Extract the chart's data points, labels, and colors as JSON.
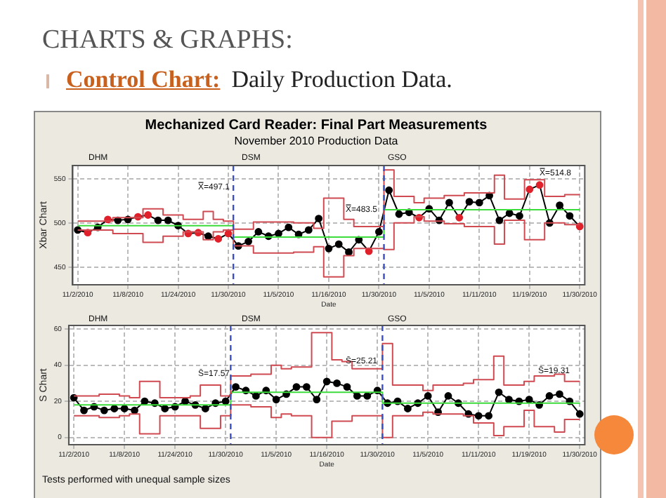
{
  "chart_data": [
    {
      "type": "line",
      "title": "Mechanized Card Reader:  Final Part Measurements",
      "subtitle": "November 2010 Production Data",
      "xlabel": "Date",
      "ylabel": "Xbar Chart",
      "annotations": [
        "CHARTS & GRAPHS:",
        "Control Chart:",
        "Daily Production Data.",
        "DHM",
        "DSM",
        "GSO",
        "X̿=497.1",
        "X̿=483.5",
        "X̿=514.8"
      ],
      "categories": [
        "11/2/2010",
        null,
        null,
        null,
        null,
        "11/8/2010",
        null,
        null,
        null,
        null,
        "11/24/2010",
        null,
        null,
        null,
        null,
        "11/30/2010",
        null,
        null,
        null,
        null,
        "11/5/2010",
        null,
        null,
        null,
        null,
        "11/16/2010",
        null,
        null,
        null,
        null,
        "11/30/2010",
        null,
        null,
        null,
        null,
        "11/5/2010",
        null,
        null,
        null,
        null,
        "11/11/2010",
        null,
        null,
        null,
        null,
        "11/19/2010",
        null,
        null,
        null,
        null,
        "11/30/2010"
      ],
      "series": [
        {
          "type": "step",
          "color": "#d04a52",
          "values": [
            502,
            502,
            502,
            502,
            506,
            506,
            506,
            516,
            516,
            509,
            509,
            504,
            504,
            513,
            504,
            502,
            493,
            493,
            501,
            501,
            501,
            501,
            500,
            500,
            494,
            528,
            528,
            504,
            496,
            496,
            496,
            560,
            530,
            530,
            523,
            528,
            528,
            531,
            531,
            534,
            534,
            534,
            554,
            527,
            527,
            549,
            549,
            530,
            530,
            532,
            532
          ]
        },
        {
          "type": "step",
          "color": "#d04a52",
          "values": [
            492,
            492,
            492,
            492,
            488,
            488,
            488,
            478,
            478,
            485,
            485,
            490,
            490,
            481,
            490,
            492,
            474,
            474,
            466,
            466,
            466,
            466,
            467,
            467,
            473,
            439,
            439,
            463,
            471,
            471,
            471,
            470,
            500,
            500,
            507,
            502,
            502,
            499,
            499,
            496,
            496,
            496,
            476,
            503,
            503,
            481,
            481,
            500,
            500,
            498,
            498
          ]
        },
        {
          "type": "step",
          "color": "#3ddc3d",
          "values": [
            497,
            497,
            497,
            497,
            497,
            497,
            497,
            497,
            497,
            497,
            497,
            497,
            497,
            497,
            497,
            497,
            484,
            484,
            484,
            484,
            484,
            484,
            484,
            484,
            484,
            484,
            484,
            484,
            484,
            484,
            484,
            515,
            515,
            515,
            515,
            515,
            515,
            515,
            515,
            515,
            515,
            515,
            515,
            515,
            515,
            515,
            515,
            515,
            515,
            515,
            515
          ]
        },
        {
          "type": "line",
          "color": "#000000",
          "marker": "circle",
          "values": [
            492,
            489,
            495,
            504,
            503,
            504,
            507,
            509,
            503,
            503,
            497,
            488,
            489,
            485,
            482,
            488,
            474,
            479,
            490,
            485,
            488,
            495,
            487,
            492,
            505,
            471,
            476,
            467,
            481,
            468,
            490,
            537,
            510,
            512,
            506,
            516,
            503,
            523,
            506,
            524,
            523,
            531,
            503,
            511,
            508,
            538,
            543,
            500,
            520,
            508,
            496
          ],
          "colors": [
            "#000000",
            "#e0202a",
            "#000000",
            "#e0202a",
            "#000000",
            "#000000",
            "#e0202a",
            "#e0202a",
            "#000000",
            "#000000",
            "#000000",
            "#e0202a",
            "#e0202a",
            "#000000",
            "#e0202a",
            "#e0202a",
            "#000000",
            "#000000",
            "#000000",
            "#000000",
            "#000000",
            "#000000",
            "#000000",
            "#000000",
            "#000000",
            "#000000",
            "#000000",
            "#000000",
            "#000000",
            "#e0202a",
            "#000000",
            "#000000",
            "#000000",
            "#000000",
            "#e0202a",
            "#000000",
            "#000000",
            "#000000",
            "#e0202a",
            "#000000",
            "#000000",
            "#000000",
            "#000000",
            "#000000",
            "#000000",
            "#e0202a",
            "#e0202a",
            "#000000",
            "#000000",
            "#000000",
            "#e0202a"
          ]
        }
      ],
      "ylim": [
        430,
        565
      ],
      "yticks": [
        450,
        500,
        550
      ],
      "grid": true,
      "legend": false
    },
    {
      "type": "line",
      "xlabel": "Date",
      "ylabel": "S Chart",
      "annotations": [
        "Tests performed with unequal sample sizes",
        "DHM",
        "DSM",
        "GSO",
        "S̄=17.57",
        "S̄=25.21",
        "S̄=19.31"
      ],
      "categories": [
        "11/2/2010",
        null,
        null,
        null,
        null,
        "11/8/2010",
        null,
        null,
        null,
        null,
        "11/24/2010",
        null,
        null,
        null,
        null,
        "11/30/2010",
        null,
        null,
        null,
        null,
        "11/5/2010",
        null,
        null,
        null,
        null,
        "11/16/2010",
        null,
        null,
        null,
        null,
        "11/30/2010",
        null,
        null,
        null,
        null,
        "11/5/2010",
        null,
        null,
        null,
        null,
        "11/11/2010",
        null,
        null,
        null,
        null,
        "11/19/2010",
        null,
        null,
        null,
        null,
        "11/30/2010"
      ],
      "series": [
        {
          "type": "step",
          "color": "#d04a52",
          "values": [
            23,
            23,
            23,
            24,
            24,
            23,
            22,
            31,
            31,
            22,
            22,
            22,
            23,
            29,
            29,
            23,
            34,
            34,
            35,
            35,
            40,
            38,
            39,
            39,
            58,
            58,
            43,
            42,
            38,
            38,
            38,
            52,
            29,
            29,
            29,
            26,
            29,
            29,
            29,
            30,
            32,
            32,
            45,
            29,
            29,
            31,
            34,
            34,
            35,
            31,
            31
          ]
        },
        {
          "type": "step",
          "color": "#d04a52",
          "values": [
            12,
            12,
            12,
            11,
            11,
            12,
            13,
            2,
            2,
            12,
            12,
            12,
            12,
            5,
            5,
            12,
            18,
            18,
            17,
            17,
            11,
            13,
            12,
            12,
            0,
            0,
            9,
            9,
            12,
            12,
            12,
            0,
            12,
            12,
            12,
            14,
            13,
            13,
            13,
            12,
            8,
            8,
            1,
            6,
            6,
            15,
            6,
            6,
            3,
            10,
            10
          ]
        },
        {
          "type": "step",
          "color": "#3ddc3d",
          "values": [
            18,
            18,
            18,
            18,
            18,
            18,
            18,
            18,
            18,
            18,
            18,
            18,
            18,
            18,
            18,
            18,
            25,
            25,
            25,
            25,
            25,
            25,
            25,
            25,
            25,
            25,
            25,
            25,
            25,
            25,
            25,
            19,
            19,
            19,
            19,
            19,
            19,
            19,
            19,
            19,
            19,
            19,
            19,
            19,
            19,
            19,
            19,
            19,
            19,
            19,
            19
          ]
        },
        {
          "type": "line",
          "color": "#000000",
          "marker": "circle",
          "values": [
            22,
            15,
            17,
            15,
            16,
            16,
            15,
            20,
            19,
            16,
            17,
            20,
            18,
            16,
            19,
            20,
            28,
            26,
            23,
            26,
            21,
            24,
            28,
            28,
            21,
            31,
            30,
            28,
            23,
            23,
            26,
            19,
            20,
            16,
            19,
            23,
            14,
            23,
            19,
            13,
            12,
            12,
            25,
            21,
            20,
            21,
            18,
            23,
            24,
            20,
            13
          ]
        }
      ],
      "ylim": [
        -4,
        62
      ],
      "yticks": [
        0,
        20,
        40,
        60
      ],
      "grid": true,
      "legend": false
    }
  ]
}
